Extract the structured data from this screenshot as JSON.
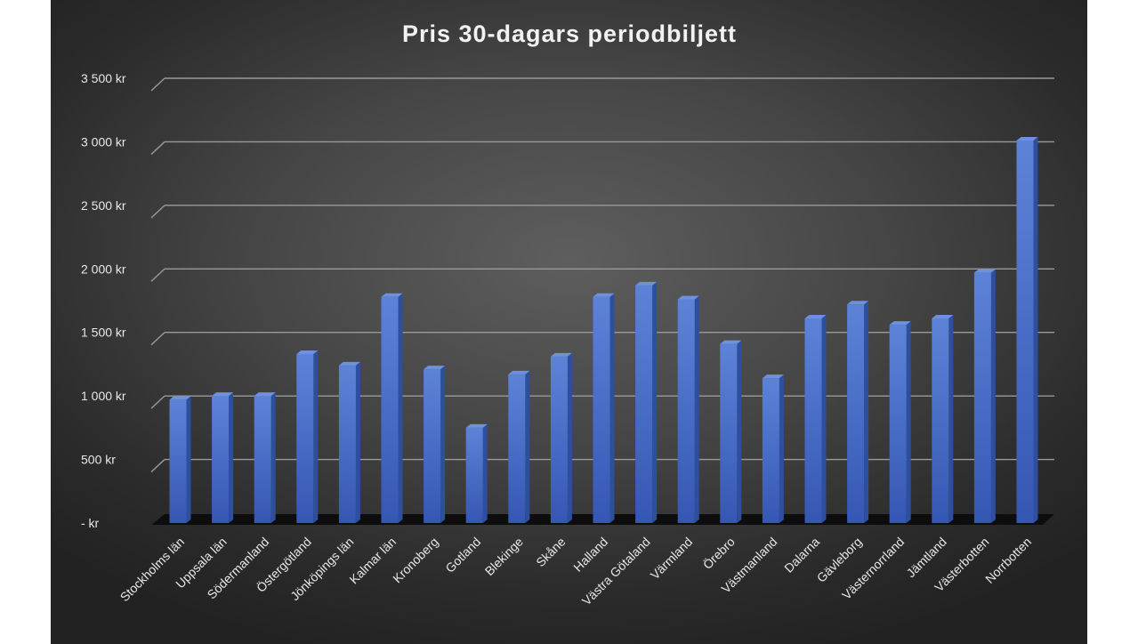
{
  "chart_data": {
    "type": "bar",
    "title": "Pris 30-dagars periodbiljett",
    "xlabel": "",
    "ylabel": "",
    "ylim": [
      0,
      3500
    ],
    "yticks": [
      0,
      500,
      1000,
      1500,
      2000,
      2500,
      3000,
      3500
    ],
    "ytick_labels": [
      "-   kr",
      "500 kr",
      "1 000 kr",
      "1 500 kr",
      "2 000 kr",
      "2 500 kr",
      "3 000 kr",
      "3 500 kr"
    ],
    "grid": true,
    "legend": "none",
    "categories": [
      "Stockholms län",
      "Uppsala län",
      "Södermanland",
      "Östergötland",
      "Jönköpings län",
      "Kalmar län",
      "Kronoberg",
      "Gotland",
      "Blekinge",
      "Skåne",
      "Halland",
      "Västra Götaland",
      "Värmland",
      "Örebro",
      "Västmanland",
      "Dalarna",
      "Gävleborg",
      "Västernorrland",
      "Jämtland",
      "Västerbotten",
      "Norrbotten"
    ],
    "values": [
      970,
      1000,
      1000,
      1330,
      1240,
      1780,
      1210,
      750,
      1170,
      1310,
      1780,
      1870,
      1760,
      1410,
      1140,
      1610,
      1720,
      1560,
      1610,
      1970,
      3010
    ],
    "colors": {
      "bar_front": "#4a72cc",
      "bar_side": "#2d4f9e",
      "bar_top": "#6f91dc",
      "grid": "#9a9a9a",
      "floor": "#0d0d0d"
    }
  }
}
